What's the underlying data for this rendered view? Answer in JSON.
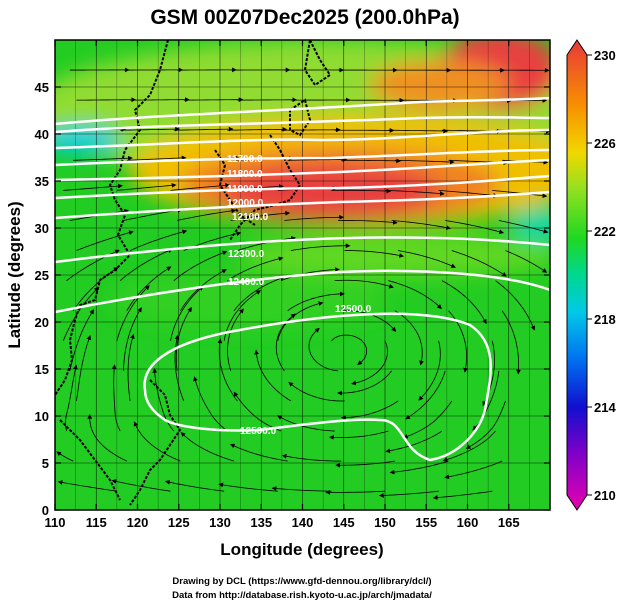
{
  "title": "GSM 00Z07Dec2025 (200.0hPa)",
  "x_axis": {
    "label": "Longitude (degrees)",
    "range": [
      110,
      170
    ],
    "ticks": [
      "110",
      "115",
      "120",
      "125",
      "130",
      "135",
      "140",
      "145",
      "150",
      "155",
      "160",
      "165"
    ]
  },
  "y_axis": {
    "label": "Latitude  (degrees)",
    "range": [
      0,
      50
    ],
    "ticks": [
      "0",
      "5",
      "10",
      "15",
      "20",
      "25",
      "30",
      "35",
      "40",
      "45"
    ]
  },
  "colorbar": {
    "range": [
      210,
      230
    ],
    "ticks": [
      "210",
      "214",
      "218",
      "222",
      "226",
      "230"
    ],
    "colors": [
      "#e800b0",
      "#8000c8",
      "#1010d0",
      "#0080ff",
      "#00c8e8",
      "#00d890",
      "#20d820",
      "#60d820",
      "#b0e820",
      "#f0d800",
      "#f8a000",
      "#f06020",
      "#e83030",
      "#e83838"
    ]
  },
  "contour_labels": {
    "c11700": "11700.0",
    "c11800": "11800.0",
    "c11900": "11900.0",
    "c12000": "12000.0",
    "c12100": "12100.0",
    "c12300": "12300.0",
    "c12400": "12400.0",
    "c12500a": "12500.0",
    "c12500b": "12500.0"
  },
  "credits": {
    "line1": "Drawing by DCL (https://www.gfd-dennou.org/library/dcl/)",
    "line2": "Data from http://database.rish.kyoto-u.ac.jp/arch/jmadata/"
  },
  "colors": {
    "jet": "#e83838",
    "tropics": "#22cc22"
  }
}
